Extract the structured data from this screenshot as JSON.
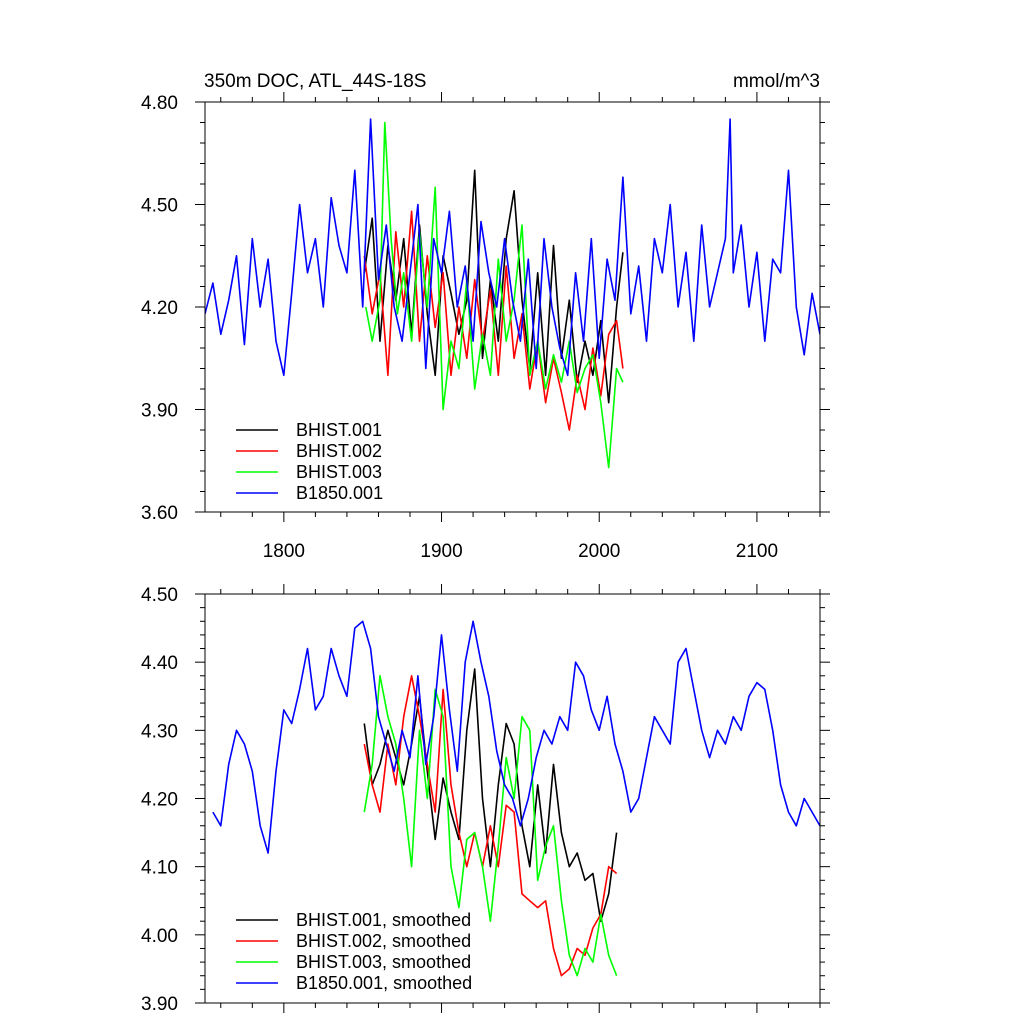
{
  "chart_data": [
    {
      "type": "line",
      "title": "350m DOC, ATL_44S-18S",
      "units": "mmol/m^3",
      "xlim": [
        1750,
        2140
      ],
      "ylim": [
        3.6,
        4.8
      ],
      "xticks": [
        1800,
        1900,
        2000,
        2100
      ],
      "xtick_labels": [
        "1800",
        "1900",
        "2000",
        "2100"
      ],
      "yticks": [
        3.6,
        3.9,
        4.2,
        4.5,
        4.8
      ],
      "ytick_labels": [
        "3.60",
        "3.90",
        "4.20",
        "4.50",
        "4.80"
      ],
      "legend_position": "bottom-left",
      "series": [
        {
          "name": "BHIST.001",
          "color": "#000000",
          "x": [
            1851,
            1856,
            1861,
            1866,
            1871,
            1876,
            1881,
            1886,
            1891,
            1896,
            1901,
            1906,
            1911,
            1916,
            1921,
            1926,
            1931,
            1936,
            1941,
            1946,
            1951,
            1956,
            1961,
            1966,
            1971,
            1976,
            1981,
            1986,
            1991,
            1996,
            2001,
            2006,
            2011,
            2015
          ],
          "y": [
            4.3,
            4.46,
            4.1,
            4.38,
            4.22,
            4.4,
            4.12,
            4.44,
            4.18,
            4.0,
            4.35,
            4.24,
            4.12,
            4.22,
            4.6,
            4.05,
            4.28,
            4.1,
            4.4,
            4.54,
            4.22,
            4.02,
            4.3,
            4.0,
            4.38,
            4.05,
            4.22,
            3.98,
            4.1,
            4.0,
            4.16,
            3.92,
            4.2,
            4.36
          ]
        },
        {
          "name": "BHIST.002",
          "color": "#ff0000",
          "x": [
            1851,
            1856,
            1861,
            1866,
            1871,
            1876,
            1881,
            1886,
            1891,
            1896,
            1901,
            1906,
            1911,
            1916,
            1921,
            1926,
            1931,
            1936,
            1941,
            1946,
            1951,
            1956,
            1961,
            1966,
            1971,
            1976,
            1981,
            1986,
            1991,
            1996,
            2001,
            2006,
            2011,
            2015
          ],
          "y": [
            4.35,
            4.18,
            4.3,
            4.0,
            4.42,
            4.2,
            4.48,
            4.1,
            4.35,
            4.14,
            4.3,
            4.0,
            4.2,
            4.05,
            4.28,
            4.1,
            4.25,
            4.0,
            4.32,
            4.05,
            4.18,
            3.96,
            4.1,
            3.92,
            4.05,
            3.95,
            3.84,
            4.0,
            3.9,
            4.08,
            3.94,
            4.12,
            4.16,
            4.02
          ]
        },
        {
          "name": "BHIST.003",
          "color": "#00ff00",
          "x": [
            1852,
            1856,
            1861,
            1864,
            1868,
            1872,
            1876,
            1881,
            1886,
            1891,
            1896,
            1901,
            1906,
            1911,
            1916,
            1921,
            1926,
            1931,
            1936,
            1941,
            1946,
            1951,
            1956,
            1961,
            1966,
            1971,
            1976,
            1981,
            1986,
            1991,
            1996,
            2001,
            2006,
            2011,
            2015
          ],
          "y": [
            4.2,
            4.1,
            4.22,
            4.74,
            4.4,
            4.18,
            4.3,
            4.1,
            4.42,
            4.2,
            4.55,
            3.9,
            4.1,
            4.02,
            4.28,
            3.96,
            4.12,
            4.0,
            4.34,
            4.1,
            4.22,
            4.44,
            4.0,
            4.1,
            3.96,
            4.06,
            3.98,
            4.1,
            3.95,
            4.02,
            4.06,
            3.92,
            3.73,
            4.02,
            3.98
          ]
        },
        {
          "name": "B1850.001",
          "color": "#0000ff",
          "x": [
            1750,
            1755,
            1760,
            1765,
            1770,
            1775,
            1780,
            1785,
            1790,
            1795,
            1800,
            1805,
            1810,
            1815,
            1820,
            1825,
            1830,
            1835,
            1840,
            1845,
            1850,
            1855,
            1860,
            1865,
            1870,
            1875,
            1880,
            1885,
            1890,
            1895,
            1900,
            1905,
            1910,
            1915,
            1920,
            1925,
            1930,
            1935,
            1940,
            1945,
            1950,
            1955,
            1960,
            1965,
            1970,
            1975,
            1980,
            1985,
            1990,
            1995,
            2000,
            2005,
            2010,
            2015,
            2020,
            2025,
            2030,
            2035,
            2040,
            2045,
            2050,
            2055,
            2060,
            2065,
            2070,
            2075,
            2080,
            2083,
            2085,
            2090,
            2095,
            2100,
            2105,
            2110,
            2115,
            2120,
            2125,
            2130,
            2135,
            2140
          ],
          "y": [
            4.18,
            4.27,
            4.12,
            4.22,
            4.35,
            4.09,
            4.4,
            4.2,
            4.34,
            4.1,
            4.0,
            4.24,
            4.5,
            4.3,
            4.4,
            4.2,
            4.52,
            4.38,
            4.3,
            4.6,
            4.2,
            4.75,
            4.28,
            4.44,
            4.2,
            4.1,
            4.3,
            4.5,
            4.02,
            4.4,
            4.3,
            4.48,
            4.2,
            4.32,
            4.1,
            4.45,
            4.3,
            4.2,
            4.4,
            4.22,
            4.1,
            4.34,
            4.02,
            4.4,
            4.2,
            4.08,
            4.0,
            4.3,
            4.1,
            4.4,
            4.05,
            4.34,
            4.22,
            4.58,
            4.18,
            4.32,
            4.1,
            4.4,
            4.3,
            4.5,
            4.2,
            4.36,
            4.1,
            4.44,
            4.2,
            4.3,
            4.4,
            4.75,
            4.3,
            4.44,
            4.2,
            4.36,
            4.1,
            4.34,
            4.3,
            4.6,
            4.2,
            4.06,
            4.24,
            4.12
          ]
        }
      ]
    },
    {
      "type": "line",
      "title": "",
      "xlim": [
        1750,
        2140
      ],
      "ylim": [
        3.9,
        4.5
      ],
      "xticks": [
        1800,
        1900,
        2000,
        2100
      ],
      "yticks": [
        3.9,
        4.0,
        4.1,
        4.2,
        4.3,
        4.4,
        4.5
      ],
      "ytick_labels": [
        "3.90",
        "4.00",
        "4.10",
        "4.20",
        "4.30",
        "4.40",
        "4.50"
      ],
      "legend_position": "bottom-left",
      "series": [
        {
          "name": "BHIST.001, smoothed",
          "color": "#000000",
          "x": [
            1851,
            1856,
            1861,
            1866,
            1871,
            1876,
            1881,
            1886,
            1891,
            1896,
            1901,
            1906,
            1911,
            1916,
            1921,
            1926,
            1931,
            1936,
            1941,
            1946,
            1951,
            1956,
            1961,
            1966,
            1971,
            1976,
            1981,
            1986,
            1991,
            1996,
            2001,
            2006,
            2011
          ],
          "y": [
            4.31,
            4.22,
            4.25,
            4.3,
            4.26,
            4.22,
            4.28,
            4.35,
            4.24,
            4.14,
            4.23,
            4.18,
            4.14,
            4.3,
            4.39,
            4.2,
            4.1,
            4.22,
            4.31,
            4.28,
            4.16,
            4.1,
            4.22,
            4.12,
            4.25,
            4.15,
            4.1,
            4.12,
            4.08,
            4.09,
            4.02,
            4.06,
            4.15
          ]
        },
        {
          "name": "BHIST.002, smoothed",
          "color": "#ff0000",
          "x": [
            1851,
            1856,
            1861,
            1866,
            1871,
            1876,
            1881,
            1886,
            1891,
            1896,
            1901,
            1906,
            1911,
            1916,
            1921,
            1926,
            1931,
            1936,
            1941,
            1946,
            1951,
            1956,
            1961,
            1966,
            1971,
            1976,
            1981,
            1986,
            1991,
            1996,
            2001,
            2006,
            2011
          ],
          "y": [
            4.28,
            4.22,
            4.18,
            4.28,
            4.22,
            4.32,
            4.38,
            4.32,
            4.25,
            4.18,
            4.36,
            4.22,
            4.15,
            4.1,
            4.15,
            4.1,
            4.16,
            4.1,
            4.19,
            4.18,
            4.06,
            4.05,
            4.04,
            4.05,
            3.98,
            3.94,
            3.95,
            3.98,
            3.97,
            4.01,
            4.03,
            4.1,
            4.09
          ]
        },
        {
          "name": "BHIST.003, smoothed",
          "color": "#00ff00",
          "x": [
            1851,
            1856,
            1861,
            1866,
            1871,
            1876,
            1881,
            1886,
            1891,
            1896,
            1901,
            1906,
            1911,
            1916,
            1921,
            1926,
            1931,
            1936,
            1941,
            1946,
            1951,
            1956,
            1961,
            1966,
            1971,
            1976,
            1981,
            1986,
            1991,
            1996,
            2001,
            2006,
            2011
          ],
          "y": [
            4.18,
            4.25,
            4.38,
            4.32,
            4.28,
            4.2,
            4.1,
            4.3,
            4.2,
            4.36,
            4.32,
            4.1,
            4.04,
            4.14,
            4.15,
            4.1,
            4.02,
            4.13,
            4.26,
            4.2,
            4.32,
            4.3,
            4.08,
            4.13,
            4.16,
            4.05,
            3.97,
            3.94,
            3.98,
            3.96,
            4.03,
            3.97,
            3.94
          ]
        },
        {
          "name": "B1850.001, smoothed",
          "color": "#0000ff",
          "x": [
            1755,
            1760,
            1765,
            1770,
            1775,
            1780,
            1785,
            1790,
            1795,
            1800,
            1805,
            1810,
            1815,
            1820,
            1825,
            1830,
            1835,
            1840,
            1845,
            1850,
            1855,
            1860,
            1865,
            1870,
            1875,
            1880,
            1885,
            1890,
            1895,
            1900,
            1905,
            1910,
            1915,
            1920,
            1925,
            1930,
            1935,
            1940,
            1945,
            1950,
            1955,
            1960,
            1965,
            1970,
            1975,
            1980,
            1985,
            1990,
            1995,
            2000,
            2005,
            2010,
            2015,
            2020,
            2025,
            2030,
            2035,
            2040,
            2045,
            2050,
            2055,
            2060,
            2065,
            2070,
            2075,
            2080,
            2085,
            2090,
            2095,
            2100,
            2105,
            2110,
            2115,
            2120,
            2125,
            2130,
            2135,
            2140
          ],
          "y": [
            4.18,
            4.16,
            4.25,
            4.3,
            4.28,
            4.24,
            4.16,
            4.12,
            4.24,
            4.33,
            4.31,
            4.36,
            4.42,
            4.33,
            4.35,
            4.42,
            4.38,
            4.35,
            4.45,
            4.46,
            4.42,
            4.32,
            4.28,
            4.24,
            4.3,
            4.26,
            4.38,
            4.25,
            4.32,
            4.44,
            4.33,
            4.24,
            4.4,
            4.46,
            4.4,
            4.35,
            4.27,
            4.22,
            4.2,
            4.16,
            4.2,
            4.26,
            4.3,
            4.28,
            4.32,
            4.3,
            4.4,
            4.38,
            4.33,
            4.3,
            4.35,
            4.28,
            4.24,
            4.18,
            4.2,
            4.26,
            4.32,
            4.3,
            4.28,
            4.4,
            4.42,
            4.36,
            4.3,
            4.26,
            4.3,
            4.28,
            4.32,
            4.3,
            4.35,
            4.37,
            4.36,
            4.3,
            4.22,
            4.18,
            4.16,
            4.2,
            4.18,
            4.16
          ]
        }
      ]
    }
  ]
}
